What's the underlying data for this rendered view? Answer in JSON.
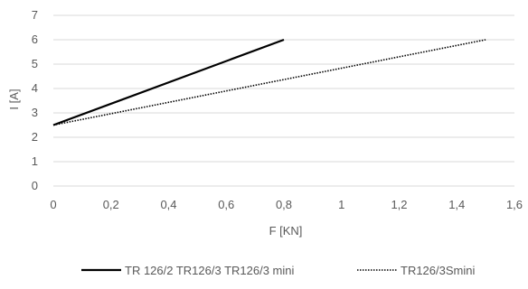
{
  "chart_data": {
    "type": "line",
    "title": "",
    "xlabel": "F [KN]",
    "ylabel": "I [A]",
    "xlim": [
      0,
      1.6
    ],
    "ylim": [
      0,
      7
    ],
    "x_ticks": [
      "0",
      "0,2",
      "0,4",
      "0,6",
      "0,8",
      "1",
      "1,2",
      "1,4",
      "1,6"
    ],
    "y_ticks": [
      "0",
      "1",
      "2",
      "3",
      "4",
      "5",
      "6",
      "7"
    ],
    "grid": "horizontal",
    "legend_position": "bottom",
    "series": [
      {
        "name": "TR 126/2 TR126/3 TR126/3 mini",
        "style": "solid",
        "color": "#000000",
        "points": [
          [
            0,
            2.5
          ],
          [
            0.8,
            6
          ]
        ]
      },
      {
        "name": "TR126/3Smini",
        "style": "dotted",
        "color": "#000000",
        "points": [
          [
            0,
            2.5
          ],
          [
            1.5,
            6
          ]
        ]
      }
    ]
  }
}
